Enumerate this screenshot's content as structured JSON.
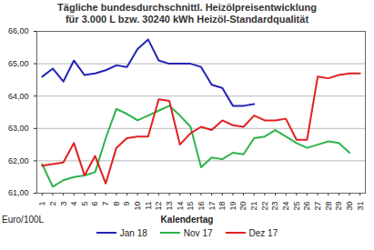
{
  "chart_data": {
    "type": "line",
    "title": [
      "Tägliche bundesdurchschnittl. Heizölpreisentwicklung",
      "für 3.000 L bzw. 30240 kWh Heizöl-Standardqualität"
    ],
    "x_label": "Kalendertag",
    "y_label": "Euro/100L",
    "x": [
      1,
      2,
      3,
      4,
      5,
      6,
      7,
      8,
      9,
      10,
      11,
      12,
      13,
      14,
      15,
      16,
      17,
      18,
      19,
      20,
      21,
      22,
      23,
      24,
      25,
      26,
      27,
      28,
      29,
      30,
      31
    ],
    "xlim": [
      0.5,
      31.5
    ],
    "xticks": [
      1,
      2,
      3,
      4,
      5,
      6,
      7,
      8,
      9,
      10,
      11,
      12,
      13,
      14,
      15,
      16,
      17,
      18,
      19,
      20,
      21,
      22,
      23,
      24,
      25,
      26,
      27,
      28,
      29,
      30,
      31
    ],
    "ylim": [
      61,
      66
    ],
    "yticks": [
      {
        "value": 61,
        "label": "61,00"
      },
      {
        "value": 62,
        "label": "62,00"
      },
      {
        "value": 63,
        "label": "63,00"
      },
      {
        "value": 64,
        "label": "64,00"
      },
      {
        "value": 65,
        "label": "65,00"
      },
      {
        "value": 66,
        "label": "66,00"
      }
    ],
    "grid": true,
    "legend": "bottom",
    "series": [
      {
        "name": "Jan 18",
        "color": "#2323b8",
        "values": [
          64.6,
          64.85,
          64.45,
          65.1,
          64.65,
          64.7,
          64.8,
          64.95,
          64.9,
          65.45,
          65.75,
          65.1,
          65.0,
          65.0,
          65.0,
          64.9,
          64.35,
          64.25,
          63.7,
          63.7,
          63.75,
          null,
          null,
          null,
          null,
          null,
          null,
          null,
          null,
          null,
          null
        ]
      },
      {
        "name": "Nov 17",
        "color": "#2db34a",
        "values": [
          61.9,
          61.2,
          61.4,
          61.5,
          61.55,
          61.65,
          62.7,
          63.6,
          63.45,
          63.25,
          63.4,
          63.55,
          63.7,
          63.4,
          63.05,
          61.8,
          62.1,
          62.05,
          62.25,
          62.2,
          62.7,
          62.75,
          62.95,
          62.75,
          62.55,
          62.4,
          62.5,
          62.6,
          62.55,
          62.25,
          null
        ]
      },
      {
        "name": "Dez 17",
        "color": "#e02020",
        "values": [
          61.85,
          61.9,
          61.95,
          62.55,
          61.55,
          62.15,
          61.3,
          62.4,
          62.7,
          62.75,
          62.75,
          63.9,
          63.85,
          62.5,
          62.85,
          63.05,
          62.95,
          63.25,
          63.1,
          63.05,
          63.4,
          63.25,
          63.25,
          63.3,
          62.65,
          62.65,
          64.6,
          64.55,
          64.65,
          64.7,
          64.7
        ]
      }
    ]
  }
}
